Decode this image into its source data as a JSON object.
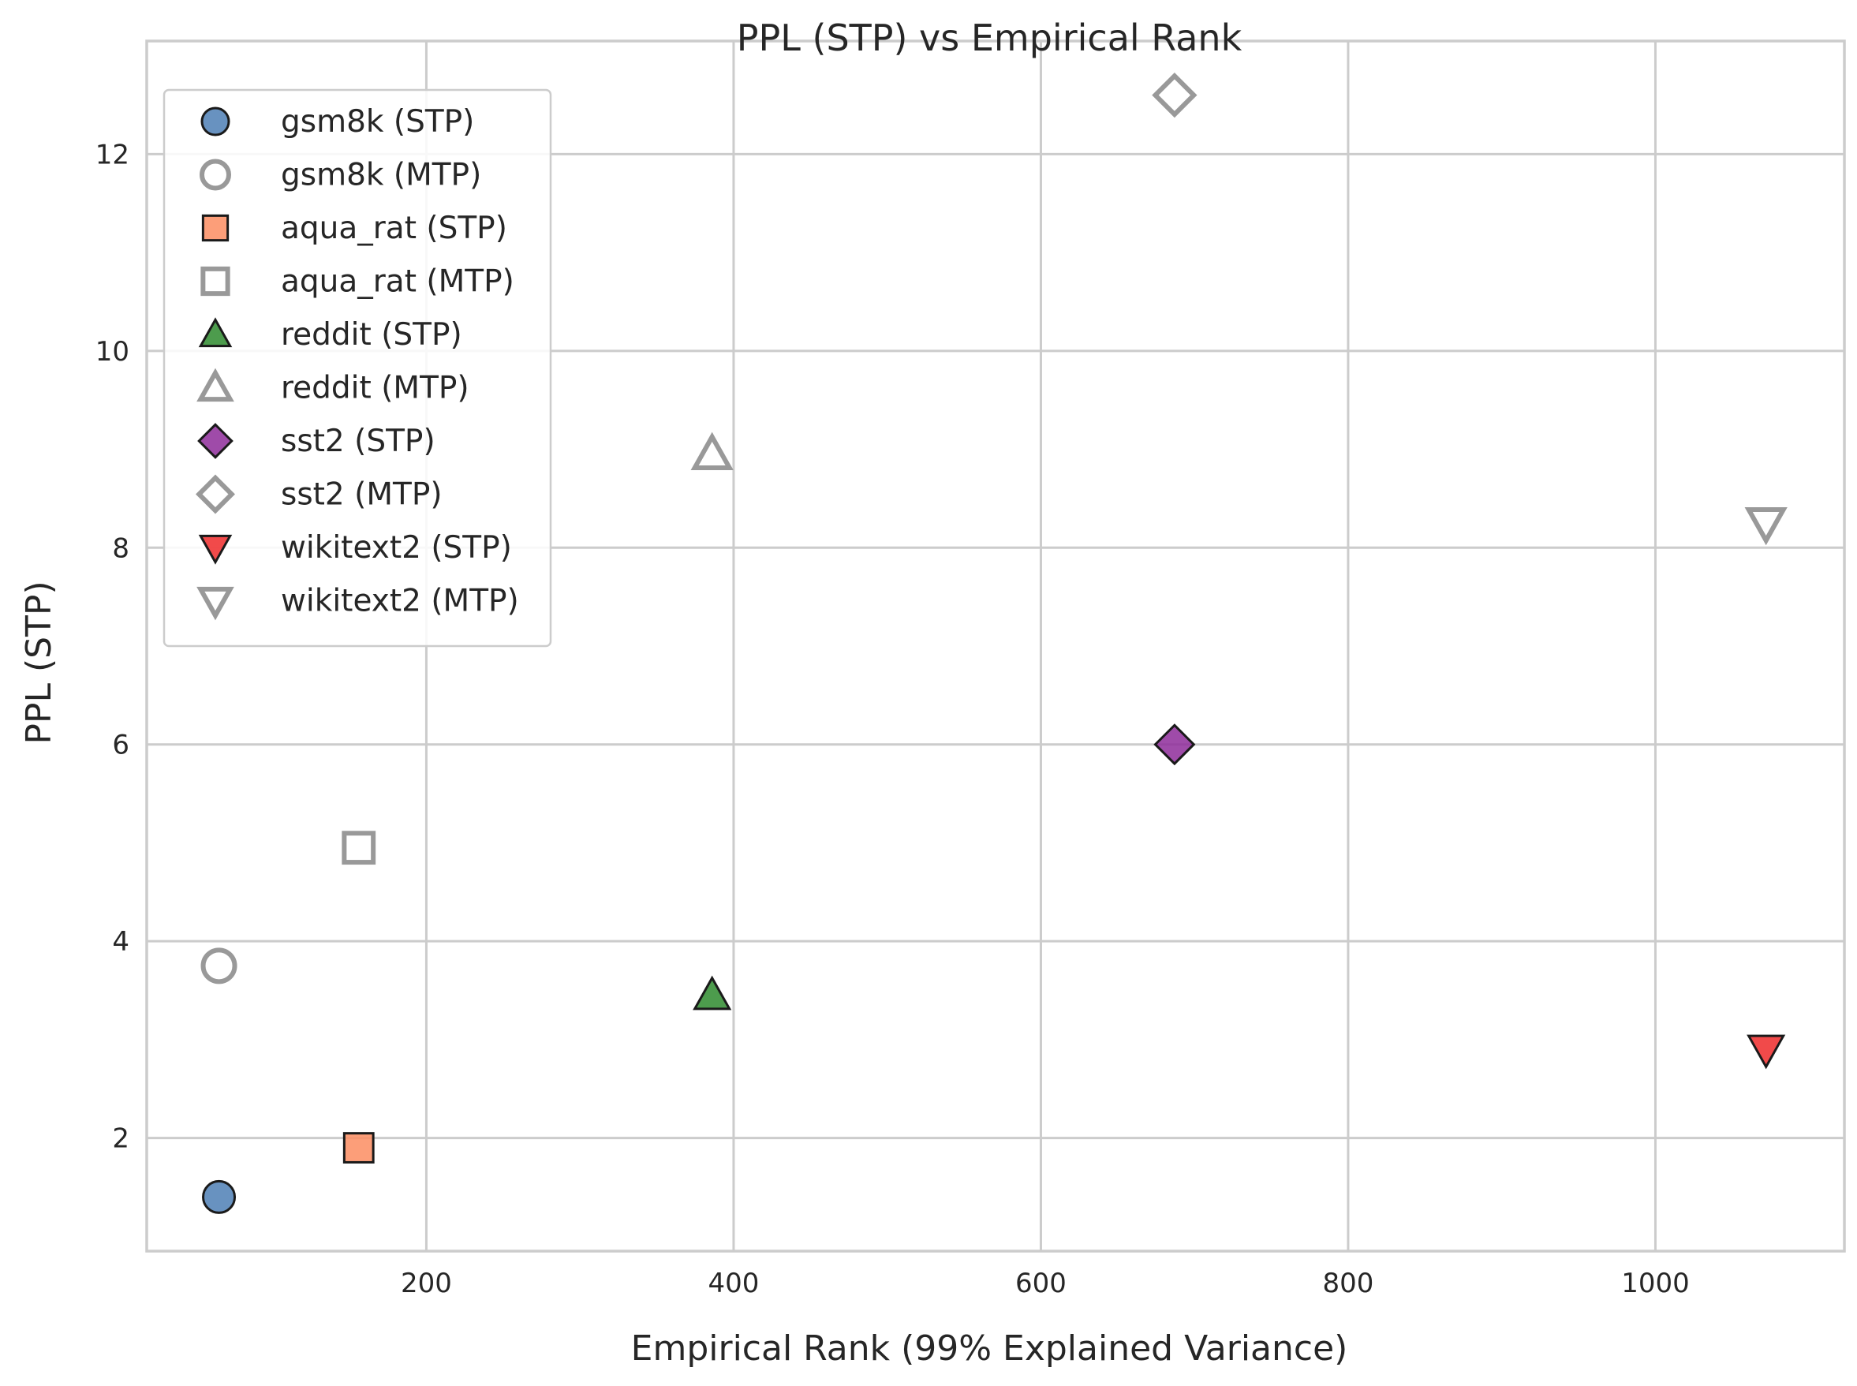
{
  "chart_data": {
    "type": "scatter",
    "title": "PPL (STP) vs Empirical Rank",
    "xlabel": "Empirical Rank (99% Explained Variance)",
    "ylabel": "PPL (STP)",
    "xlim": [
      18,
      1123
    ],
    "ylim": [
      0.85,
      13.15
    ],
    "xticks": [
      200,
      400,
      600,
      800,
      1000
    ],
    "yticks": [
      2,
      4,
      6,
      8,
      10,
      12
    ],
    "grid": true,
    "legend_position": "upper-left",
    "series": [
      {
        "name": "gsm8k (STP)",
        "marker": "circle",
        "fill": "#4e7fb5",
        "stroke": "#1a1a1a",
        "filled": true,
        "points": [
          {
            "x": 65,
            "y": 1.4
          }
        ]
      },
      {
        "name": "gsm8k (MTP)",
        "marker": "circle",
        "fill": "none",
        "stroke": "#999999",
        "filled": false,
        "points": [
          {
            "x": 65,
            "y": 3.75
          }
        ]
      },
      {
        "name": "aqua_rat (STP)",
        "marker": "square",
        "fill": "#fc8d62",
        "stroke": "#1a1a1a",
        "filled": true,
        "points": [
          {
            "x": 156,
            "y": 1.9
          }
        ]
      },
      {
        "name": "aqua_rat (MTP)",
        "marker": "square",
        "fill": "none",
        "stroke": "#999999",
        "filled": false,
        "points": [
          {
            "x": 156,
            "y": 4.95
          }
        ]
      },
      {
        "name": "reddit (STP)",
        "marker": "triangle-up",
        "fill": "#2e8b2e",
        "stroke": "#1a1a1a",
        "filled": true,
        "points": [
          {
            "x": 386,
            "y": 3.45
          }
        ]
      },
      {
        "name": "reddit (MTP)",
        "marker": "triangle-up",
        "fill": "none",
        "stroke": "#999999",
        "filled": false,
        "points": [
          {
            "x": 386,
            "y": 8.95
          }
        ]
      },
      {
        "name": "sst2 (STP)",
        "marker": "diamond",
        "fill": "#8e2c9a",
        "stroke": "#1a1a1a",
        "filled": true,
        "points": [
          {
            "x": 687,
            "y": 6.0
          }
        ]
      },
      {
        "name": "sst2 (MTP)",
        "marker": "diamond",
        "fill": "none",
        "stroke": "#999999",
        "filled": false,
        "points": [
          {
            "x": 687,
            "y": 12.6
          }
        ]
      },
      {
        "name": "wikitext2 (STP)",
        "marker": "triangle-down",
        "fill": "#ee2a2a",
        "stroke": "#1a1a1a",
        "filled": true,
        "points": [
          {
            "x": 1072,
            "y": 2.9
          }
        ]
      },
      {
        "name": "wikitext2 (MTP)",
        "marker": "triangle-down",
        "fill": "none",
        "stroke": "#999999",
        "filled": false,
        "points": [
          {
            "x": 1072,
            "y": 8.25
          }
        ]
      }
    ]
  }
}
